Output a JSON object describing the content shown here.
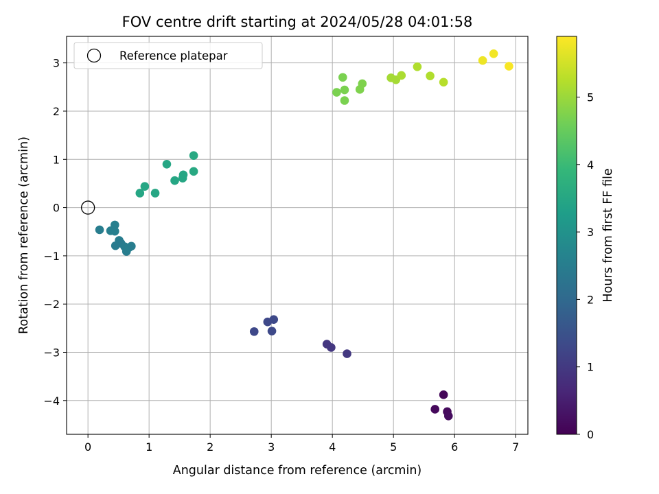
{
  "chart_data": {
    "type": "scatter",
    "title": "FOV centre drift starting at 2024/05/28 04:01:58",
    "xlabel": "Angular distance from reference (arcmin)",
    "ylabel": "Rotation from reference (arcmin)",
    "xlim": [
      -0.35,
      7.2
    ],
    "ylim": [
      -4.7,
      3.55
    ],
    "xticks": [
      0,
      1,
      2,
      3,
      4,
      5,
      6,
      7
    ],
    "yticks": [
      -4,
      -3,
      -2,
      -1,
      0,
      1,
      2,
      3
    ],
    "grid": true,
    "legend": {
      "placement": "upper-left",
      "entries": [
        {
          "label": "Reference platepar",
          "marker": "open-circle",
          "x": 0,
          "y": 0
        }
      ]
    },
    "colorbar": {
      "label": "Hours from first FF file",
      "colormap": "viridis",
      "range": [
        0,
        5.9
      ],
      "ticks": [
        0,
        1,
        2,
        3,
        4,
        5
      ]
    },
    "colormap_stops": [
      "#440154",
      "#482878",
      "#3e4989",
      "#31688e",
      "#26828e",
      "#1f9e89",
      "#35b779",
      "#6ece58",
      "#b5de2b",
      "#fde725"
    ],
    "points": [
      {
        "x": 5.82,
        "y": -3.88,
        "h": 0.1
      },
      {
        "x": 5.68,
        "y": -4.18,
        "h": 0.12
      },
      {
        "x": 5.88,
        "y": -4.23,
        "h": 0.15
      },
      {
        "x": 5.9,
        "y": -4.32,
        "h": 0.18
      },
      {
        "x": 3.91,
        "y": -2.83,
        "h": 0.95
      },
      {
        "x": 3.98,
        "y": -2.9,
        "h": 0.95
      },
      {
        "x": 4.24,
        "y": -3.03,
        "h": 0.98
      },
      {
        "x": 2.72,
        "y": -2.57,
        "h": 1.3
      },
      {
        "x": 2.94,
        "y": -2.37,
        "h": 1.3
      },
      {
        "x": 3.04,
        "y": -2.32,
        "h": 1.32
      },
      {
        "x": 3.01,
        "y": -2.56,
        "h": 1.32
      },
      {
        "x": 0.19,
        "y": -0.46,
        "h": 2.5
      },
      {
        "x": 0.37,
        "y": -0.48,
        "h": 2.55
      },
      {
        "x": 0.44,
        "y": -0.36,
        "h": 2.55
      },
      {
        "x": 0.44,
        "y": -0.49,
        "h": 2.55
      },
      {
        "x": 0.51,
        "y": -0.68,
        "h": 2.5
      },
      {
        "x": 0.54,
        "y": -0.74,
        "h": 2.45
      },
      {
        "x": 0.45,
        "y": -0.79,
        "h": 2.45
      },
      {
        "x": 0.6,
        "y": -0.81,
        "h": 2.5
      },
      {
        "x": 0.63,
        "y": -0.91,
        "h": 2.5
      },
      {
        "x": 0.67,
        "y": -0.83,
        "h": 2.55
      },
      {
        "x": 0.71,
        "y": -0.8,
        "h": 2.5
      },
      {
        "x": 0.85,
        "y": 0.3,
        "h": 3.5
      },
      {
        "x": 0.93,
        "y": 0.44,
        "h": 3.5
      },
      {
        "x": 1.1,
        "y": 0.3,
        "h": 3.5
      },
      {
        "x": 1.29,
        "y": 0.9,
        "h": 3.5
      },
      {
        "x": 1.42,
        "y": 0.56,
        "h": 3.5
      },
      {
        "x": 1.55,
        "y": 0.61,
        "h": 3.5
      },
      {
        "x": 1.56,
        "y": 0.68,
        "h": 3.5
      },
      {
        "x": 1.73,
        "y": 1.08,
        "h": 3.55
      },
      {
        "x": 1.73,
        "y": 0.75,
        "h": 3.55
      },
      {
        "x": 4.07,
        "y": 2.39,
        "h": 4.7
      },
      {
        "x": 4.17,
        "y": 2.7,
        "h": 4.7
      },
      {
        "x": 4.2,
        "y": 2.44,
        "h": 4.7
      },
      {
        "x": 4.2,
        "y": 2.22,
        "h": 4.7
      },
      {
        "x": 4.45,
        "y": 2.45,
        "h": 4.75
      },
      {
        "x": 4.49,
        "y": 2.57,
        "h": 4.75
      },
      {
        "x": 4.96,
        "y": 2.69,
        "h": 5.1
      },
      {
        "x": 5.04,
        "y": 2.65,
        "h": 5.1
      },
      {
        "x": 5.13,
        "y": 2.74,
        "h": 5.15
      },
      {
        "x": 5.39,
        "y": 2.92,
        "h": 5.2
      },
      {
        "x": 5.6,
        "y": 2.73,
        "h": 5.2
      },
      {
        "x": 5.82,
        "y": 2.6,
        "h": 5.25
      },
      {
        "x": 6.46,
        "y": 3.05,
        "h": 5.75
      },
      {
        "x": 6.64,
        "y": 3.19,
        "h": 5.8
      },
      {
        "x": 6.89,
        "y": 2.93,
        "h": 5.85
      }
    ]
  }
}
